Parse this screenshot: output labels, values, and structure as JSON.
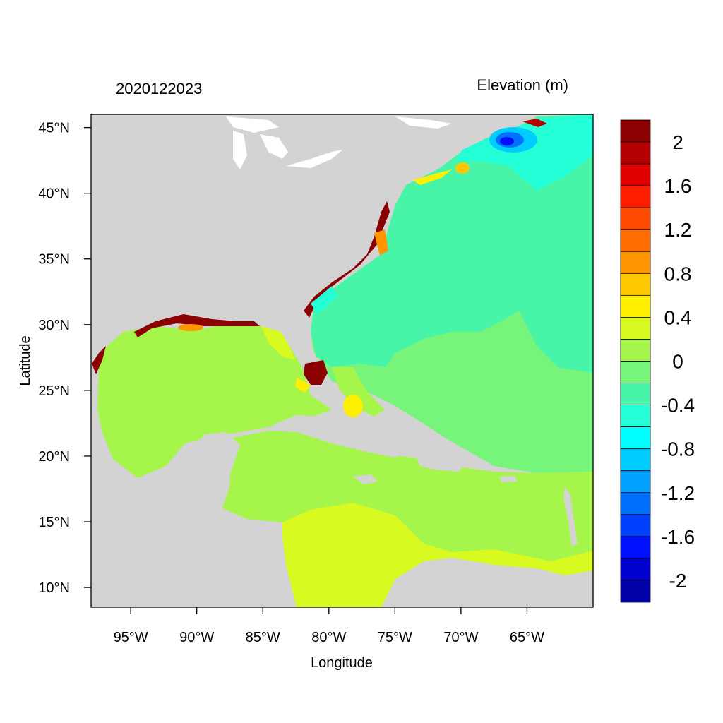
{
  "header": {
    "left_title": "2020122023",
    "right_title": "Elevation (m)"
  },
  "axes": {
    "xlabel": "Longitude",
    "ylabel": "Latitude",
    "lon_range": [
      -98,
      -60
    ],
    "lat_range": [
      8.5,
      46
    ],
    "x_ticks": [
      {
        "lon": -95,
        "label": "95°W"
      },
      {
        "lon": -90,
        "label": "90°W"
      },
      {
        "lon": -85,
        "label": "85°W"
      },
      {
        "lon": -80,
        "label": "80°W"
      },
      {
        "lon": -75,
        "label": "75°W"
      },
      {
        "lon": -70,
        "label": "70°W"
      },
      {
        "lon": -65,
        "label": "65°W"
      }
    ],
    "y_ticks": [
      {
        "lat": 10,
        "label": "10°N"
      },
      {
        "lat": 15,
        "label": "15°N"
      },
      {
        "lat": 20,
        "label": "20°N"
      },
      {
        "lat": 25,
        "label": "25°N"
      },
      {
        "lat": 30,
        "label": "30°N"
      },
      {
        "lat": 35,
        "label": "35°N"
      },
      {
        "lat": 40,
        "label": "40°N"
      },
      {
        "lat": 45,
        "label": "45°N"
      }
    ]
  },
  "colorbar": {
    "colors_top_to_bottom": [
      "#8b0000",
      "#b40000",
      "#e00000",
      "#ff1e00",
      "#ff4800",
      "#ff6c00",
      "#ff9600",
      "#ffc800",
      "#fff000",
      "#d9fa20",
      "#a6f54a",
      "#76f57a",
      "#48f5a8",
      "#24ffd8",
      "#00ffff",
      "#00ccff",
      "#00a0ff",
      "#0070ff",
      "#0040ff",
      "#0010ff",
      "#0000d0",
      "#0000a8"
    ],
    "tick_labels": [
      "2",
      "1.6",
      "1.2",
      "0.8",
      "0.4",
      "0",
      "-0.4",
      "-0.8",
      "-1.2",
      "-1.6",
      "-2"
    ]
  },
  "land_color": "#d3d3d3",
  "water_color": "#ffffff",
  "ocean_field_colors": {
    "open_atlantic": "#76f57a",
    "north_atlantic_shelf": "#48f5a8",
    "gulf_of_mexico": "#a6f54a",
    "caribbean_south": "#d9fa20",
    "gulf_of_maine": "#24ffd8",
    "bay_of_fundy_low": "#0070ff",
    "south_florida_high": "#8b0000"
  }
}
